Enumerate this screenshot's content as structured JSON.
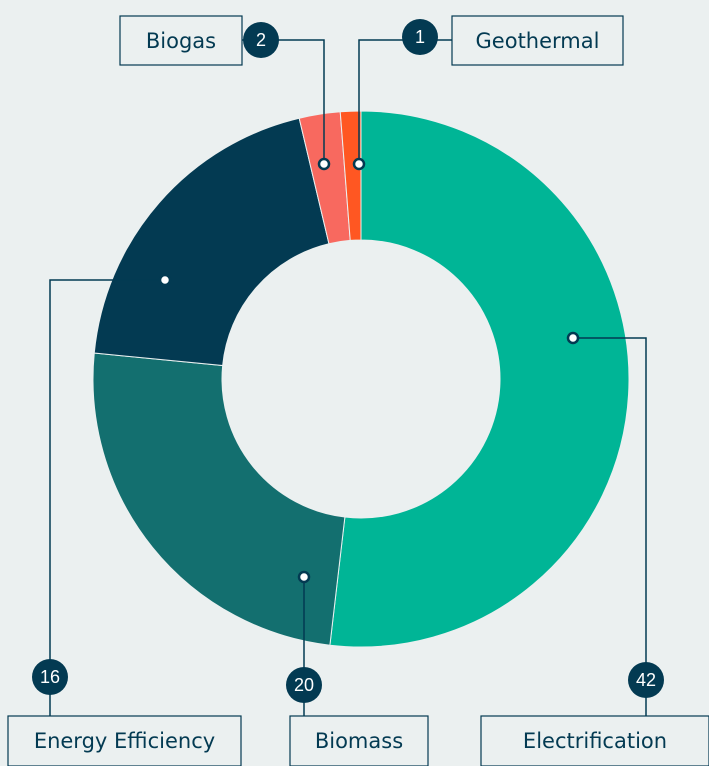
{
  "chart_data": {
    "type": "donut",
    "categories": [
      "Electrification",
      "Biomass",
      "Energy Efficiency",
      "Biogas",
      "Geothermal"
    ],
    "values": [
      42,
      20,
      16,
      2,
      1
    ],
    "colors": [
      "#00b596",
      "#136f6f",
      "#033a52",
      "#f8695f",
      "#ff5722"
    ]
  }
}
